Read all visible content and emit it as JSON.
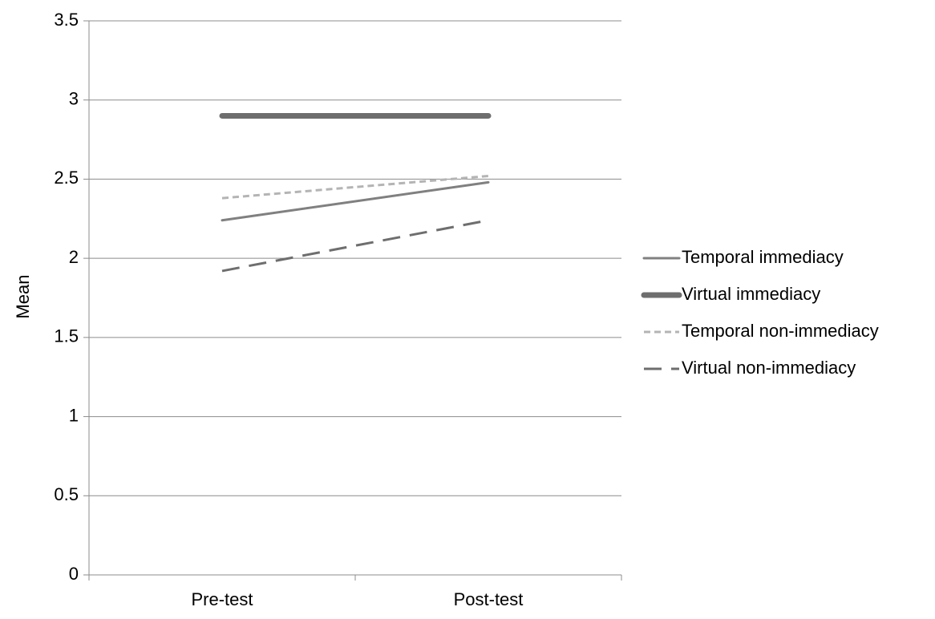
{
  "chart_data": {
    "type": "line",
    "title": "",
    "xlabel": "",
    "ylabel": "Mean",
    "categories": [
      "Pre-test",
      "Post-test"
    ],
    "ylim": [
      0,
      3.5
    ],
    "yticks": [
      "0",
      "0.5",
      "1",
      "1.5",
      "2",
      "2.5",
      "3",
      "3.5"
    ],
    "grid": "horizontal",
    "legend_position": "right",
    "series": [
      {
        "name": "Temporal immediacy",
        "values": [
          2.24,
          2.48
        ],
        "color": "#808080",
        "style": "solid",
        "weight": "normal"
      },
      {
        "name": "Virtual immediacy",
        "values": [
          2.9,
          2.9
        ],
        "color": "#6e6e6e",
        "style": "solid",
        "weight": "thick"
      },
      {
        "name": "Temporal non-immediacy",
        "values": [
          2.38,
          2.52
        ],
        "color": "#b4b4b4",
        "style": "short-dash",
        "weight": "normal"
      },
      {
        "name": "Virtual non-immediacy",
        "values": [
          1.92,
          2.24
        ],
        "color": "#6e6e6e",
        "style": "long-dash",
        "weight": "normal"
      }
    ]
  }
}
